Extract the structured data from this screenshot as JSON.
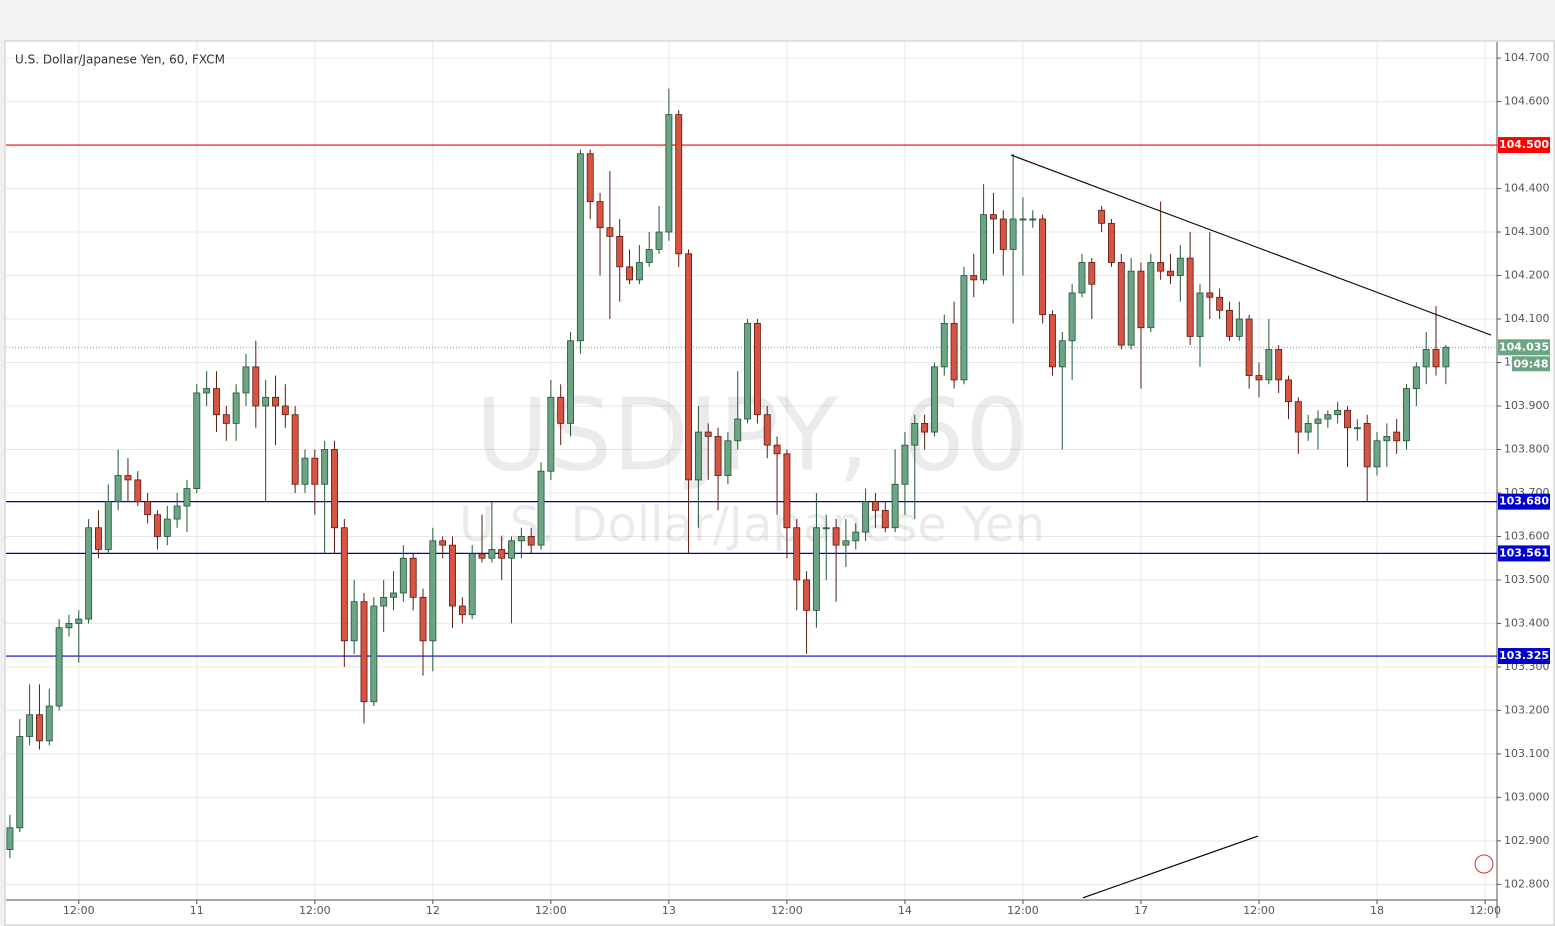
{
  "chart_data": {
    "type": "candlestick",
    "title": "U.S. Dollar/Japanese Yen, 60, FXCM",
    "watermark": "USDJPY, 60",
    "watermark_subtitle": "U.S. Dollar/Japanese Yen",
    "up_color": "#6ba583",
    "down_color": "#d75442",
    "grid": true,
    "xlim": [
      -0.4,
      151.2
    ],
    "xticks": [
      {
        "value": 7,
        "label": "12:00"
      },
      {
        "value": 19,
        "label": "11"
      },
      {
        "value": 31,
        "label": "12:00"
      },
      {
        "value": 43,
        "label": "12"
      },
      {
        "value": 55,
        "label": "12:00"
      },
      {
        "value": 67,
        "label": "13"
      },
      {
        "value": 79,
        "label": "12:00"
      },
      {
        "value": 91,
        "label": "14"
      },
      {
        "value": 103,
        "label": "12:00"
      },
      {
        "value": 115,
        "label": "17"
      },
      {
        "value": 127,
        "label": "12:00"
      },
      {
        "value": 139,
        "label": "18"
      },
      {
        "value": 150,
        "label": "12:00"
      }
    ],
    "ylim": [
      102.764,
      104.737
    ],
    "yticks": [
      {
        "value": 102.8,
        "label": "102.800"
      },
      {
        "value": 102.9,
        "label": "102.900"
      },
      {
        "value": 103.0,
        "label": "103.000"
      },
      {
        "value": 103.1,
        "label": "103.100"
      },
      {
        "value": 103.2,
        "label": "103.200"
      },
      {
        "value": 103.3,
        "label": "103.300"
      },
      {
        "value": 103.4,
        "label": "103.400"
      },
      {
        "value": 103.5,
        "label": "103.500"
      },
      {
        "value": 103.6,
        "label": "103.600"
      },
      {
        "value": 103.7,
        "label": "103.700"
      },
      {
        "value": 103.8,
        "label": "103.800"
      },
      {
        "value": 103.9,
        "label": "103.900"
      },
      {
        "value": 104.0,
        "label": "104.000"
      },
      {
        "value": 104.1,
        "label": "104.100"
      },
      {
        "value": 104.2,
        "label": "104.200"
      },
      {
        "value": 104.3,
        "label": "104.300"
      },
      {
        "value": 104.4,
        "label": "104.400"
      },
      {
        "value": 104.5,
        "label": "104.500"
      },
      {
        "value": 104.6,
        "label": "104.600"
      },
      {
        "value": 104.7,
        "label": "104.700"
      }
    ],
    "open": [
      102.88,
      102.93,
      103.14,
      103.19,
      103.13,
      103.21,
      103.39,
      103.4,
      103.41,
      103.62,
      103.57,
      103.68,
      103.74,
      103.73,
      103.68,
      103.65,
      103.6,
      103.64,
      103.67,
      103.71,
      103.93,
      103.94,
      103.88,
      103.86,
      103.93,
      103.99,
      103.9,
      103.92,
      103.9,
      103.88,
      103.72,
      103.78,
      103.72,
      103.8,
      103.62,
      103.36,
      103.45,
      103.22,
      103.44,
      103.46,
      103.47,
      103.55,
      103.46,
      103.36,
      103.59,
      103.58,
      103.44,
      103.42,
      103.56,
      103.55,
      103.57,
      103.55,
      103.59,
      103.6,
      103.58,
      103.75,
      103.92,
      103.86,
      104.05,
      104.48,
      104.37,
      104.31,
      104.29,
      104.22,
      104.19,
      104.23,
      104.26,
      104.3,
      104.57,
      104.25,
      103.73,
      103.84,
      103.83,
      103.74,
      103.82,
      103.87,
      104.09,
      103.88,
      103.81,
      103.79,
      103.62,
      103.5,
      103.43,
      103.62,
      103.62,
      103.58,
      103.59,
      103.61,
      103.68,
      103.66,
      103.62,
      103.72,
      103.81,
      103.86,
      103.84,
      103.99,
      104.09,
      103.96,
      104.2,
      104.19,
      104.34,
      104.33,
      104.26,
      104.33,
      104.33,
      104.33,
      104.11,
      103.99,
      104.05,
      104.16,
      104.23,
      104.35,
      104.32,
      104.23,
      104.04,
      104.21,
      104.08,
      104.23,
      104.21,
      104.2,
      104.24,
      104.06,
      104.16,
      104.15,
      104.12,
      104.06,
      104.1,
      103.97,
      103.96,
      104.03,
      103.96,
      103.91,
      103.84,
      103.86,
      103.87,
      103.88,
      103.89,
      103.85,
      103.86,
      103.76,
      103.82,
      103.84,
      103.82,
      103.94,
      103.99,
      104.03,
      103.99
    ],
    "high": [
      102.96,
      103.18,
      103.26,
      103.26,
      103.25,
      103.41,
      103.42,
      103.43,
      103.64,
      103.66,
      103.72,
      103.8,
      103.78,
      103.75,
      103.7,
      103.66,
      103.67,
      103.7,
      103.73,
      103.95,
      103.98,
      103.98,
      103.9,
      103.95,
      104.02,
      104.05,
      103.96,
      103.97,
      103.95,
      103.9,
      103.8,
      103.8,
      103.82,
      103.82,
      103.64,
      103.5,
      103.47,
      103.46,
      103.5,
      103.52,
      103.58,
      103.56,
      103.48,
      103.62,
      103.6,
      103.6,
      103.46,
      103.58,
      103.65,
      103.68,
      103.6,
      103.6,
      103.62,
      103.62,
      103.77,
      103.96,
      103.95,
      104.07,
      104.49,
      104.49,
      104.39,
      104.44,
      104.33,
      104.26,
      104.27,
      104.3,
      104.36,
      104.63,
      104.58,
      104.26,
      103.9,
      103.86,
      103.85,
      103.84,
      103.98,
      104.1,
      104.1,
      103.9,
      103.83,
      103.8,
      103.64,
      103.52,
      103.7,
      103.65,
      103.64,
      103.64,
      103.63,
      103.71,
      103.7,
      103.68,
      103.8,
      103.84,
      103.88,
      103.88,
      104.0,
      104.11,
      104.14,
      104.22,
      104.25,
      104.41,
      104.39,
      104.35,
      104.48,
      104.38,
      104.35,
      104.34,
      104.12,
      104.07,
      104.18,
      104.25,
      104.24,
      104.36,
      104.33,
      104.25,
      104.24,
      104.23,
      104.25,
      104.37,
      104.25,
      104.27,
      104.3,
      104.18,
      104.3,
      104.17,
      104.14,
      104.14,
      104.11,
      104.0,
      104.1,
      104.04,
      103.97,
      103.92,
      103.88,
      103.89,
      103.89,
      103.91,
      103.9,
      103.87,
      103.88,
      103.84,
      103.86,
      103.87,
      103.95,
      104.0,
      104.07,
      104.13,
      104.04
    ],
    "low": [
      102.86,
      102.92,
      103.12,
      103.11,
      103.12,
      103.2,
      103.37,
      103.31,
      103.4,
      103.55,
      103.56,
      103.66,
      103.68,
      103.67,
      103.63,
      103.57,
      103.58,
      103.62,
      103.61,
      103.7,
      103.9,
      103.84,
      103.82,
      103.82,
      103.9,
      103.85,
      103.68,
      103.81,
      103.85,
      103.7,
      103.7,
      103.65,
      103.56,
      103.56,
      103.3,
      103.33,
      103.17,
      103.21,
      103.38,
      103.43,
      103.45,
      103.43,
      103.28,
      103.29,
      103.55,
      103.39,
      103.4,
      103.41,
      103.54,
      103.54,
      103.5,
      103.4,
      103.55,
      103.56,
      103.57,
      103.73,
      103.81,
      103.83,
      104.02,
      104.33,
      104.2,
      104.1,
      104.14,
      104.18,
      104.18,
      104.22,
      104.25,
      104.28,
      104.22,
      103.56,
      103.62,
      103.73,
      103.66,
      103.72,
      103.8,
      103.86,
      103.86,
      103.78,
      103.65,
      103.55,
      103.43,
      103.33,
      103.39,
      103.5,
      103.45,
      103.53,
      103.57,
      103.59,
      103.62,
      103.61,
      103.61,
      103.65,
      103.64,
      103.8,
      103.83,
      103.97,
      103.94,
      103.95,
      104.15,
      104.18,
      104.25,
      104.2,
      104.09,
      104.2,
      104.31,
      104.09,
      103.97,
      103.8,
      103.96,
      104.15,
      104.1,
      104.3,
      104.22,
      104.03,
      104.03,
      103.94,
      104.07,
      104.19,
      104.18,
      104.14,
      104.04,
      103.99,
      104.1,
      104.1,
      104.05,
      104.05,
      103.94,
      103.92,
      103.95,
      103.93,
      103.87,
      103.79,
      103.82,
      103.8,
      103.85,
      103.86,
      103.76,
      103.82,
      103.68,
      103.74,
      103.76,
      103.79,
      103.8,
      103.9,
      103.95,
      103.97,
      103.95
    ],
    "close": [
      102.93,
      103.14,
      103.19,
      103.13,
      103.21,
      103.39,
      103.4,
      103.41,
      103.62,
      103.57,
      103.68,
      103.74,
      103.73,
      103.68,
      103.65,
      103.6,
      103.64,
      103.67,
      103.71,
      103.93,
      103.94,
      103.88,
      103.86,
      103.93,
      103.99,
      103.9,
      103.92,
      103.9,
      103.88,
      103.72,
      103.78,
      103.72,
      103.8,
      103.62,
      103.36,
      103.45,
      103.22,
      103.44,
      103.46,
      103.47,
      103.55,
      103.46,
      103.36,
      103.59,
      103.58,
      103.44,
      103.42,
      103.56,
      103.55,
      103.57,
      103.55,
      103.59,
      103.6,
      103.58,
      103.75,
      103.92,
      103.86,
      104.05,
      104.48,
      104.37,
      104.31,
      104.29,
      104.22,
      104.19,
      104.23,
      104.26,
      104.3,
      104.57,
      104.25,
      103.73,
      103.84,
      103.83,
      103.74,
      103.82,
      103.87,
      104.09,
      103.88,
      103.81,
      103.79,
      103.62,
      103.5,
      103.43,
      103.62,
      103.62,
      103.58,
      103.59,
      103.61,
      103.68,
      103.66,
      103.62,
      103.72,
      103.81,
      103.86,
      103.84,
      103.99,
      104.09,
      103.96,
      104.2,
      104.19,
      104.34,
      104.33,
      104.26,
      104.33,
      104.33,
      104.33,
      104.11,
      103.99,
      104.05,
      104.16,
      104.23,
      104.18,
      104.32,
      104.23,
      104.04,
      104.21,
      104.08,
      104.23,
      104.21,
      104.2,
      104.24,
      104.06,
      104.16,
      104.15,
      104.12,
      104.06,
      104.1,
      103.97,
      103.96,
      104.03,
      103.96,
      103.91,
      103.84,
      103.86,
      103.87,
      103.88,
      103.89,
      103.85,
      103.85,
      103.76,
      103.82,
      103.83,
      103.82,
      103.94,
      103.99,
      104.03,
      103.99,
      104.035
    ],
    "levels": [
      {
        "value": 104.5,
        "label": "104.500",
        "color": "#ff0000"
      },
      {
        "value": 103.68,
        "label": "103.680",
        "color": "#0000cc"
      },
      {
        "value": 103.561,
        "label": "103.561",
        "color": "#0000cc"
      },
      {
        "value": 103.325,
        "label": "103.325",
        "color": "#0000cc"
      }
    ],
    "last_price": {
      "value": 104.035,
      "label": "104.035",
      "countdown": "09:48",
      "color": "#6ba583"
    },
    "trend_lines": [
      {
        "x": [
          101.8,
          150.6
        ],
        "y": [
          104.477,
          104.063
        ]
      },
      {
        "x": [
          109.1,
          126.9
        ],
        "y": [
          102.769,
          102.911
        ]
      }
    ]
  }
}
